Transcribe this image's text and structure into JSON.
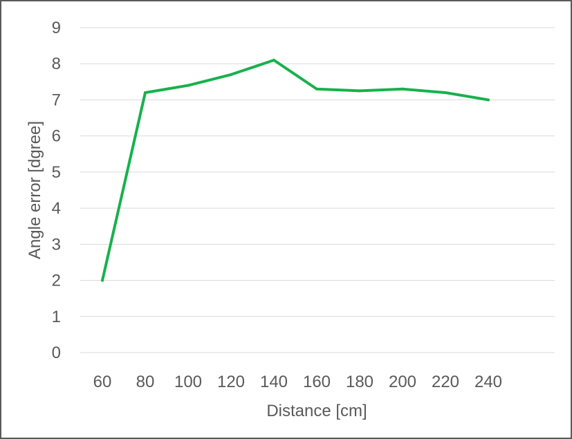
{
  "chart_data": {
    "type": "line",
    "title": "",
    "xlabel": "Distance [cm]",
    "ylabel": "Angle error [dgree]",
    "categories": [
      "60",
      "80",
      "100",
      "120",
      "140",
      "160",
      "180",
      "200",
      "220",
      "240"
    ],
    "y_ticks": [
      "0",
      "1",
      "2",
      "3",
      "4",
      "5",
      "6",
      "7",
      "8",
      "9"
    ],
    "ylim": [
      0,
      9
    ],
    "grid": true,
    "legend": "none",
    "series": [
      {
        "color": "#17b14c",
        "values": [
          2.0,
          7.2,
          7.4,
          7.7,
          8.1,
          7.3,
          7.25,
          7.3,
          7.2,
          7.0
        ]
      }
    ]
  }
}
